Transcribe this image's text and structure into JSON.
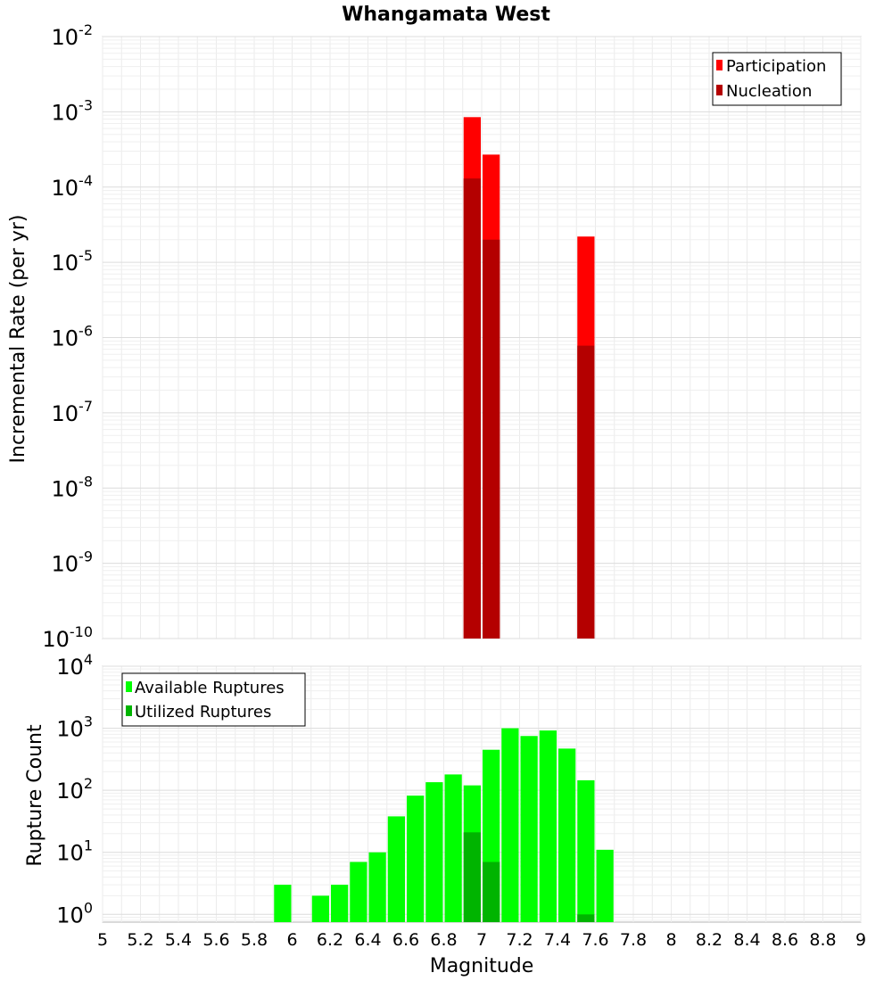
{
  "title": "Whangamata West",
  "chart_data": [
    {
      "type": "bar",
      "ylabel": "Incremental Rate (per yr)",
      "yscale": "log",
      "ylim": [
        1e-10,
        0.01
      ],
      "xlim": [
        5,
        9
      ],
      "grid": true,
      "legend_position": "top-right",
      "y_tick_labels": [
        {
          "base": "10",
          "exp": "-10"
        },
        {
          "base": "10",
          "exp": "-9"
        },
        {
          "base": "10",
          "exp": "-8"
        },
        {
          "base": "10",
          "exp": "-7"
        },
        {
          "base": "10",
          "exp": "-6"
        },
        {
          "base": "10",
          "exp": "-5"
        },
        {
          "base": "10",
          "exp": "-4"
        },
        {
          "base": "10",
          "exp": "-3"
        },
        {
          "base": "10",
          "exp": "-2"
        }
      ],
      "series": [
        {
          "name": "Participation",
          "color": "#ff0000",
          "points": [
            {
              "x": 6.95,
              "y": 0.00085
            },
            {
              "x": 7.05,
              "y": 0.00027
            },
            {
              "x": 7.55,
              "y": 2.2e-05
            }
          ]
        },
        {
          "name": "Nucleation",
          "color": "#b40000",
          "points": [
            {
              "x": 6.95,
              "y": 0.00013
            },
            {
              "x": 7.05,
              "y": 2e-05
            },
            {
              "x": 7.55,
              "y": 7.8e-07
            }
          ]
        }
      ]
    },
    {
      "type": "bar",
      "xlabel": "Magnitude",
      "ylabel": "Rupture Count",
      "yscale": "log",
      "ylim": [
        0.75,
        10000
      ],
      "xlim": [
        5,
        9
      ],
      "grid": true,
      "legend_position": "top-left",
      "x_tick_labels": [
        "5",
        "5.2",
        "5.4",
        "5.6",
        "5.8",
        "6",
        "6.2",
        "6.4",
        "6.6",
        "6.8",
        "7",
        "7.2",
        "7.4",
        "7.6",
        "7.8",
        "8",
        "8.2",
        "8.4",
        "8.6",
        "8.8",
        "9"
      ],
      "y_tick_labels": [
        {
          "base": "10",
          "exp": "0"
        },
        {
          "base": "10",
          "exp": "1"
        },
        {
          "base": "10",
          "exp": "2"
        },
        {
          "base": "10",
          "exp": "3"
        },
        {
          "base": "10",
          "exp": "4"
        }
      ],
      "series": [
        {
          "name": "Available Ruptures",
          "color": "#00ff00",
          "points": [
            {
              "x": 5.95,
              "y": 3
            },
            {
              "x": 6.15,
              "y": 2
            },
            {
              "x": 6.25,
              "y": 3
            },
            {
              "x": 6.35,
              "y": 7
            },
            {
              "x": 6.45,
              "y": 10
            },
            {
              "x": 6.55,
              "y": 38
            },
            {
              "x": 6.65,
              "y": 82
            },
            {
              "x": 6.75,
              "y": 135
            },
            {
              "x": 6.85,
              "y": 180
            },
            {
              "x": 6.95,
              "y": 120
            },
            {
              "x": 7.05,
              "y": 450
            },
            {
              "x": 7.15,
              "y": 1000
            },
            {
              "x": 7.25,
              "y": 750
            },
            {
              "x": 7.35,
              "y": 920
            },
            {
              "x": 7.45,
              "y": 470
            },
            {
              "x": 7.55,
              "y": 145
            },
            {
              "x": 7.65,
              "y": 11
            }
          ]
        },
        {
          "name": "Utilized Ruptures",
          "color": "#00b400",
          "points": [
            {
              "x": 6.95,
              "y": 21
            },
            {
              "x": 7.05,
              "y": 7
            },
            {
              "x": 7.55,
              "y": 1
            }
          ]
        }
      ]
    }
  ]
}
